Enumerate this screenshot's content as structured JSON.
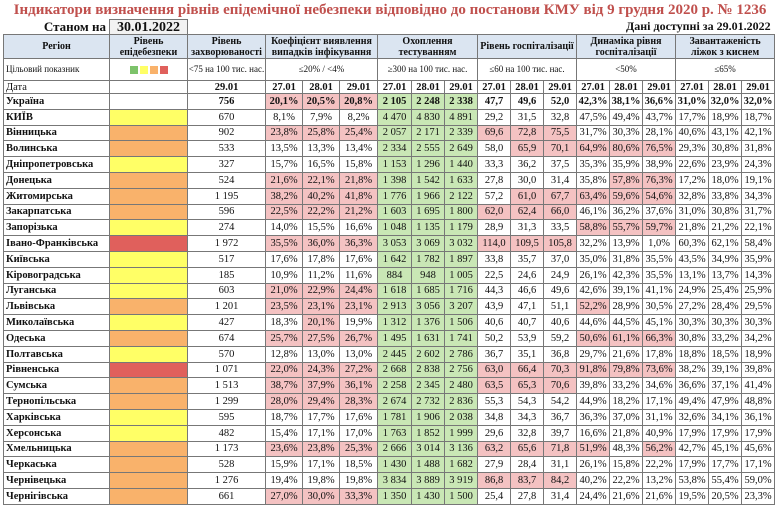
{
  "title": "Індикатори визначення рівнів епідемічної небезпеки відповідно до постанови КМУ від 9 грудня 2020 р. № 1236",
  "status_label": "Станом на",
  "status_date": "30.01.2022",
  "available": "Дані доступні за 29.01.2022",
  "headers": {
    "region": "Регіон",
    "level": "Рівень епідебезпеки",
    "incidence": "Рівень захворюваності",
    "detection": "Коефіцієнт виявлення випадків інфікування",
    "testing": "Охоплення тестуванням",
    "hospital": "Рівень госпіталізації",
    "dynamics": "Динаміка рівня госпіталізації",
    "oxygen": "Завантаженість ліжок з киснем"
  },
  "target": {
    "label": "Цільовий показник",
    "incidence": "<75 на 100 тис. нас.",
    "detection": "≤20% / <4%",
    "testing": "≥300 на 100 тис. нас.",
    "hospital": "≤60 на 100 тис. нас.",
    "dynamics": "<50%",
    "oxygen": "≤65%"
  },
  "date_row": {
    "label": "Дата",
    "incidence": "29.01",
    "dates": [
      "27.01",
      "28.01",
      "29.01"
    ]
  },
  "rows": [
    {
      "name": "Україна",
      "lvl": "",
      "inc": "756",
      "det": [
        "20,1%",
        "20,5%",
        "20,8%"
      ],
      "tst": [
        "2 105",
        "2 248",
        "2 338"
      ],
      "hsp": [
        "47,7",
        "49,6",
        "52,0"
      ],
      "dyn": [
        "42,3%",
        "38,1%",
        "36,6%"
      ],
      "oxy": [
        "31,0%",
        "32,0%",
        "32,0%"
      ],
      "ukr": true
    },
    {
      "name": "КИЇВ",
      "lvl": "y",
      "inc": "670",
      "det": [
        "8,1%",
        "7,9%",
        "8,2%"
      ],
      "tst": [
        "4 470",
        "4 830",
        "4 891"
      ],
      "hsp": [
        "29,2",
        "31,5",
        "32,8"
      ],
      "dyn": [
        "47,5%",
        "49,4%",
        "43,7%"
      ],
      "oxy": [
        "17,7%",
        "18,9%",
        "18,7%"
      ]
    },
    {
      "name": "Вінницька",
      "lvl": "o",
      "inc": "902",
      "det": [
        "23,8%",
        "25,8%",
        "25,4%"
      ],
      "tst": [
        "2 057",
        "2 171",
        "2 339"
      ],
      "hsp": [
        "69,6",
        "72,8",
        "75,5"
      ],
      "dyn": [
        "31,7%",
        "30,3%",
        "28,1%"
      ],
      "oxy": [
        "40,6%",
        "43,1%",
        "42,1%"
      ]
    },
    {
      "name": "Волинська",
      "lvl": "o",
      "inc": "533",
      "det": [
        "13,5%",
        "13,3%",
        "13,4%"
      ],
      "tst": [
        "2 334",
        "2 555",
        "2 649"
      ],
      "hsp": [
        "58,0",
        "65,9",
        "70,1"
      ],
      "dyn": [
        "64,9%",
        "80,6%",
        "76,5%"
      ],
      "oxy": [
        "29,3%",
        "30,8%",
        "31,8%"
      ]
    },
    {
      "name": "Дніпропетровська",
      "lvl": "y",
      "inc": "327",
      "det": [
        "15,7%",
        "16,5%",
        "15,8%"
      ],
      "tst": [
        "1 153",
        "1 296",
        "1 440"
      ],
      "hsp": [
        "33,3",
        "36,2",
        "37,5"
      ],
      "dyn": [
        "35,3%",
        "35,9%",
        "38,9%"
      ],
      "oxy": [
        "22,6%",
        "23,9%",
        "24,3%"
      ]
    },
    {
      "name": "Донецька",
      "lvl": "o",
      "inc": "524",
      "det": [
        "21,6%",
        "22,1%",
        "21,8%"
      ],
      "tst": [
        "1 398",
        "1 542",
        "1 633"
      ],
      "hsp": [
        "27,8",
        "30,0",
        "31,4"
      ],
      "dyn": [
        "35,8%",
        "57,8%",
        "76,3%"
      ],
      "oxy": [
        "17,2%",
        "18,0%",
        "19,1%"
      ]
    },
    {
      "name": "Житомирська",
      "lvl": "o",
      "inc": "1 195",
      "det": [
        "38,2%",
        "40,2%",
        "41,8%"
      ],
      "tst": [
        "1 776",
        "1 966",
        "2 122"
      ],
      "hsp": [
        "57,2",
        "61,0",
        "67,7"
      ],
      "dyn": [
        "63,4%",
        "59,6%",
        "54,6%"
      ],
      "oxy": [
        "32,8%",
        "33,8%",
        "34,3%"
      ]
    },
    {
      "name": "Закарпатська",
      "lvl": "o",
      "inc": "596",
      "det": [
        "22,5%",
        "22,2%",
        "21,2%"
      ],
      "tst": [
        "1 603",
        "1 695",
        "1 800"
      ],
      "hsp": [
        "62,0",
        "62,4",
        "66,0"
      ],
      "dyn": [
        "46,1%",
        "36,2%",
        "37,6%"
      ],
      "oxy": [
        "31,0%",
        "30,8%",
        "31,7%"
      ]
    },
    {
      "name": "Запорізька",
      "lvl": "y",
      "inc": "274",
      "det": [
        "14,0%",
        "15,5%",
        "16,6%"
      ],
      "tst": [
        "1 048",
        "1 135",
        "1 179"
      ],
      "hsp": [
        "28,9",
        "31,3",
        "33,5"
      ],
      "dyn": [
        "58,8%",
        "55,7%",
        "59,7%"
      ],
      "oxy": [
        "21,8%",
        "21,2%",
        "22,1%"
      ]
    },
    {
      "name": "Івано-Франківська",
      "lvl": "r",
      "inc": "1 972",
      "det": [
        "35,5%",
        "36,0%",
        "36,3%"
      ],
      "tst": [
        "3 053",
        "3 069",
        "3 032"
      ],
      "hsp": [
        "114,0",
        "109,5",
        "105,8"
      ],
      "dyn": [
        "32,2%",
        "13,9%",
        "1,0%"
      ],
      "oxy": [
        "60,3%",
        "62,1%",
        "58,4%"
      ]
    },
    {
      "name": "Київська",
      "lvl": "y",
      "inc": "517",
      "det": [
        "17,6%",
        "17,8%",
        "17,6%"
      ],
      "tst": [
        "1 642",
        "1 782",
        "1 897"
      ],
      "hsp": [
        "33,8",
        "35,7",
        "37,0"
      ],
      "dyn": [
        "35,0%",
        "31,8%",
        "35,5%"
      ],
      "oxy": [
        "43,5%",
        "34,9%",
        "35,9%"
      ]
    },
    {
      "name": "Кіровоградська",
      "lvl": "y",
      "inc": "185",
      "det": [
        "10,9%",
        "11,2%",
        "11,6%"
      ],
      "tst": [
        "884",
        "948",
        "1 005"
      ],
      "hsp": [
        "22,5",
        "24,6",
        "24,9"
      ],
      "dyn": [
        "26,1%",
        "42,3%",
        "35,5%"
      ],
      "oxy": [
        "13,1%",
        "13,7%",
        "14,3%"
      ]
    },
    {
      "name": "Луганська",
      "lvl": "y",
      "inc": "603",
      "det": [
        "21,0%",
        "22,9%",
        "24,4%"
      ],
      "tst": [
        "1 618",
        "1 685",
        "1 716"
      ],
      "hsp": [
        "44,3",
        "46,6",
        "49,6"
      ],
      "dyn": [
        "42,6%",
        "39,1%",
        "41,1%"
      ],
      "oxy": [
        "24,9%",
        "25,4%",
        "25,9%"
      ]
    },
    {
      "name": "Львівська",
      "lvl": "o",
      "inc": "1 201",
      "det": [
        "23,5%",
        "23,1%",
        "23,1%"
      ],
      "tst": [
        "2 913",
        "3 056",
        "3 207"
      ],
      "hsp": [
        "43,9",
        "47,1",
        "51,1"
      ],
      "dyn": [
        "52,2%",
        "28,9%",
        "30,5%"
      ],
      "oxy": [
        "27,2%",
        "28,4%",
        "29,5%"
      ]
    },
    {
      "name": "Миколаївська",
      "lvl": "y",
      "inc": "427",
      "det": [
        "18,3%",
        "20,1%",
        "19,9%"
      ],
      "tst": [
        "1 312",
        "1 376",
        "1 506"
      ],
      "hsp": [
        "40,6",
        "40,7",
        "40,6"
      ],
      "dyn": [
        "44,6%",
        "44,5%",
        "45,1%"
      ],
      "oxy": [
        "30,3%",
        "30,3%",
        "30,3%"
      ]
    },
    {
      "name": "Одеська",
      "lvl": "o",
      "inc": "674",
      "det": [
        "25,7%",
        "27,5%",
        "26,7%"
      ],
      "tst": [
        "1 495",
        "1 631",
        "1 741"
      ],
      "hsp": [
        "50,2",
        "53,9",
        "59,2"
      ],
      "dyn": [
        "50,6%",
        "61,1%",
        "66,3%"
      ],
      "oxy": [
        "30,8%",
        "33,2%",
        "34,2%"
      ]
    },
    {
      "name": "Полтавська",
      "lvl": "y",
      "inc": "570",
      "det": [
        "12,8%",
        "13,0%",
        "13,0%"
      ],
      "tst": [
        "2 445",
        "2 602",
        "2 786"
      ],
      "hsp": [
        "36,7",
        "35,1",
        "36,8"
      ],
      "dyn": [
        "29,7%",
        "21,6%",
        "17,8%"
      ],
      "oxy": [
        "18,8%",
        "18,5%",
        "18,9%"
      ]
    },
    {
      "name": "Рівненська",
      "lvl": "r",
      "inc": "1 071",
      "det": [
        "22,0%",
        "24,3%",
        "27,2%"
      ],
      "tst": [
        "2 668",
        "2 838",
        "2 756"
      ],
      "hsp": [
        "63,0",
        "66,4",
        "70,3"
      ],
      "dyn": [
        "91,8%",
        "79,8%",
        "73,6%"
      ],
      "oxy": [
        "38,2%",
        "39,1%",
        "39,8%"
      ]
    },
    {
      "name": "Сумська",
      "lvl": "o",
      "inc": "1 513",
      "det": [
        "38,7%",
        "37,9%",
        "36,1%"
      ],
      "tst": [
        "2 258",
        "2 345",
        "2 480"
      ],
      "hsp": [
        "63,5",
        "65,3",
        "70,6"
      ],
      "dyn": [
        "39,8%",
        "33,2%",
        "34,6%"
      ],
      "oxy": [
        "36,6%",
        "37,1%",
        "41,4%"
      ]
    },
    {
      "name": "Тернопільська",
      "lvl": "o",
      "inc": "1 299",
      "det": [
        "28,0%",
        "29,4%",
        "28,3%"
      ],
      "tst": [
        "2 674",
        "2 732",
        "2 836"
      ],
      "hsp": [
        "55,3",
        "54,3",
        "54,2"
      ],
      "dyn": [
        "44,9%",
        "18,2%",
        "17,1%"
      ],
      "oxy": [
        "49,4%",
        "47,9%",
        "48,8%"
      ]
    },
    {
      "name": "Харківська",
      "lvl": "y",
      "inc": "595",
      "det": [
        "18,7%",
        "17,7%",
        "17,6%"
      ],
      "tst": [
        "1 781",
        "1 906",
        "2 038"
      ],
      "hsp": [
        "34,8",
        "34,3",
        "36,7"
      ],
      "dyn": [
        "36,3%",
        "37,0%",
        "31,1%"
      ],
      "oxy": [
        "32,6%",
        "34,1%",
        "36,1%"
      ]
    },
    {
      "name": "Херсонська",
      "lvl": "y",
      "inc": "482",
      "det": [
        "15,4%",
        "17,1%",
        "17,0%"
      ],
      "tst": [
        "1 763",
        "1 852",
        "1 999"
      ],
      "hsp": [
        "29,6",
        "32,8",
        "39,7"
      ],
      "dyn": [
        "16,6%",
        "21,8%",
        "40,9%"
      ],
      "oxy": [
        "17,9%",
        "17,9%",
        "17,9%"
      ]
    },
    {
      "name": "Хмельницька",
      "lvl": "o",
      "inc": "1 173",
      "det": [
        "23,6%",
        "23,8%",
        "25,3%"
      ],
      "tst": [
        "2 666",
        "3 014",
        "3 136"
      ],
      "hsp": [
        "63,2",
        "65,6",
        "71,8"
      ],
      "dyn": [
        "51,9%",
        "48,3%",
        "56,2%"
      ],
      "oxy": [
        "42,7%",
        "45,1%",
        "45,6%"
      ]
    },
    {
      "name": "Черкаська",
      "lvl": "o",
      "inc": "528",
      "det": [
        "15,9%",
        "17,1%",
        "18,5%"
      ],
      "tst": [
        "1 430",
        "1 488",
        "1 682"
      ],
      "hsp": [
        "27,9",
        "28,4",
        "31,1"
      ],
      "dyn": [
        "26,1%",
        "15,8%",
        "22,2%"
      ],
      "oxy": [
        "17,9%",
        "17,7%",
        "17,1%"
      ]
    },
    {
      "name": "Чернівецька",
      "lvl": "o",
      "inc": "1 276",
      "det": [
        "19,4%",
        "19,8%",
        "19,8%"
      ],
      "tst": [
        "3 834",
        "3 889",
        "3 919"
      ],
      "hsp": [
        "86,8",
        "83,7",
        "84,2"
      ],
      "dyn": [
        "40,2%",
        "22,2%",
        "13,2%"
      ],
      "oxy": [
        "53,8%",
        "55,4%",
        "59,0%"
      ]
    },
    {
      "name": "Чернігівська",
      "lvl": "o",
      "inc": "661",
      "det": [
        "27,0%",
        "30,0%",
        "33,3%"
      ],
      "tst": [
        "1 350",
        "1 430",
        "1 500"
      ],
      "hsp": [
        "25,4",
        "27,8",
        "31,4"
      ],
      "dyn": [
        "24,4%",
        "21,6%",
        "21,6%"
      ],
      "oxy": [
        "19,5%",
        "20,5%",
        "23,3%"
      ]
    }
  ],
  "colors": {
    "title": "#c0504d",
    "header_bg": "#dbe5f1",
    "level_yellow": "#ffff66",
    "level_orange": "#f9b26b",
    "level_red": "#e0605c",
    "bad_cell": "#f4c2c2",
    "good_cell": "#c9e7b5"
  }
}
